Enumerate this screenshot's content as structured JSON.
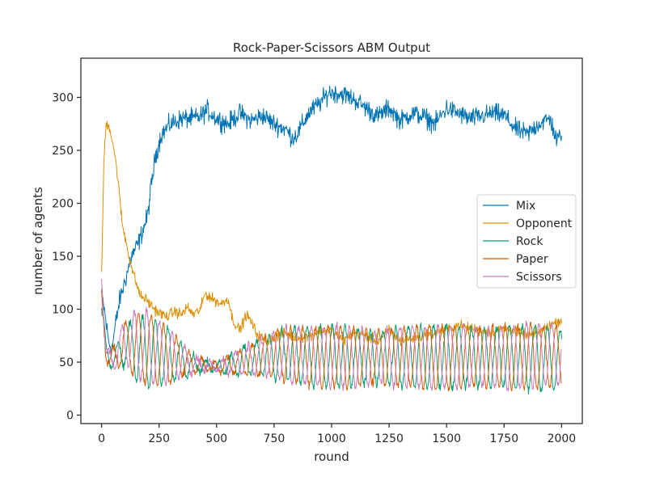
{
  "chart_data": {
    "type": "line",
    "title": "Rock-Paper-Scissors ABM Output",
    "xlabel": "round",
    "ylabel": "number of agents",
    "xlim": [
      -90,
      2090
    ],
    "ylim": [
      -8,
      337
    ],
    "x_ticks": [
      0,
      250,
      500,
      750,
      1000,
      1250,
      1500,
      1750,
      2000
    ],
    "y_ticks": [
      0,
      50,
      100,
      150,
      200,
      250,
      300
    ],
    "grid": false,
    "legend_position": "center-right",
    "series": [
      {
        "name": "Mix",
        "color": "#0173b2",
        "noise": 9,
        "anchors": [
          [
            0,
            115
          ],
          [
            15,
            95
          ],
          [
            30,
            70
          ],
          [
            45,
            62
          ],
          [
            60,
            85
          ],
          [
            80,
            110
          ],
          [
            100,
            125
          ],
          [
            130,
            150
          ],
          [
            160,
            162
          ],
          [
            180,
            175
          ],
          [
            200,
            188
          ],
          [
            215,
            215
          ],
          [
            235,
            245
          ],
          [
            260,
            265
          ],
          [
            300,
            275
          ],
          [
            350,
            280
          ],
          [
            400,
            280
          ],
          [
            430,
            282
          ],
          [
            460,
            288
          ],
          [
            500,
            280
          ],
          [
            550,
            275
          ],
          [
            600,
            285
          ],
          [
            650,
            278
          ],
          [
            700,
            283
          ],
          [
            750,
            275
          ],
          [
            800,
            270
          ],
          [
            830,
            262
          ],
          [
            850,
            265
          ],
          [
            900,
            285
          ],
          [
            950,
            295
          ],
          [
            990,
            305
          ],
          [
            1050,
            303
          ],
          [
            1100,
            298
          ],
          [
            1150,
            290
          ],
          [
            1200,
            282
          ],
          [
            1250,
            290
          ],
          [
            1300,
            278
          ],
          [
            1350,
            285
          ],
          [
            1400,
            282
          ],
          [
            1450,
            275
          ],
          [
            1500,
            290
          ],
          [
            1550,
            285
          ],
          [
            1600,
            280
          ],
          [
            1650,
            282
          ],
          [
            1700,
            285
          ],
          [
            1750,
            283
          ],
          [
            1800,
            270
          ],
          [
            1850,
            265
          ],
          [
            1900,
            275
          ],
          [
            1950,
            280
          ],
          [
            1980,
            258
          ],
          [
            2000,
            268
          ]
        ]
      },
      {
        "name": "Opponent",
        "color": "#de8f05",
        "noise": 5,
        "anchors": [
          [
            0,
            130
          ],
          [
            10,
            240
          ],
          [
            20,
            275
          ],
          [
            35,
            272
          ],
          [
            55,
            250
          ],
          [
            70,
            225
          ],
          [
            90,
            180
          ],
          [
            110,
            160
          ],
          [
            130,
            140
          ],
          [
            150,
            125
          ],
          [
            170,
            112
          ],
          [
            190,
            110
          ],
          [
            210,
            105
          ],
          [
            240,
            98
          ],
          [
            280,
            93
          ],
          [
            320,
            98
          ],
          [
            350,
            95
          ],
          [
            370,
            102
          ],
          [
            400,
            95
          ],
          [
            430,
            100
          ],
          [
            450,
            115
          ],
          [
            480,
            110
          ],
          [
            520,
            105
          ],
          [
            550,
            110
          ],
          [
            570,
            90
          ],
          [
            600,
            80
          ],
          [
            630,
            95
          ],
          [
            650,
            88
          ],
          [
            680,
            75
          ],
          [
            720,
            70
          ],
          [
            760,
            75
          ],
          [
            800,
            78
          ],
          [
            850,
            72
          ],
          [
            900,
            75
          ],
          [
            950,
            80
          ],
          [
            1000,
            80
          ],
          [
            1050,
            70
          ],
          [
            1100,
            78
          ],
          [
            1150,
            75
          ],
          [
            1200,
            70
          ],
          [
            1250,
            80
          ],
          [
            1300,
            70
          ],
          [
            1350,
            72
          ],
          [
            1400,
            75
          ],
          [
            1450,
            78
          ],
          [
            1500,
            80
          ],
          [
            1550,
            85
          ],
          [
            1600,
            82
          ],
          [
            1650,
            80
          ],
          [
            1700,
            78
          ],
          [
            1750,
            82
          ],
          [
            1800,
            80
          ],
          [
            1850,
            75
          ],
          [
            1900,
            78
          ],
          [
            1950,
            85
          ],
          [
            2000,
            90
          ]
        ]
      },
      {
        "name": "Rock",
        "color": "#029e73",
        "noise": 4,
        "phase": 0,
        "anchors": [
          [
            0,
            100
          ],
          [
            20,
            60
          ],
          [
            40,
            55
          ],
          [
            60,
            52
          ],
          [
            100,
            65
          ],
          [
            200,
            60
          ],
          [
            300,
            55
          ],
          [
            400,
            48
          ],
          [
            500,
            45
          ],
          [
            600,
            50
          ],
          [
            700,
            55
          ],
          [
            800,
            58
          ],
          [
            900,
            55
          ],
          [
            1000,
            55
          ],
          [
            1200,
            55
          ],
          [
            1400,
            55
          ],
          [
            1600,
            55
          ],
          [
            1800,
            55
          ],
          [
            2000,
            52
          ]
        ],
        "amp_anchors": [
          [
            0,
            8
          ],
          [
            50,
            10
          ],
          [
            100,
            20
          ],
          [
            150,
            30
          ],
          [
            200,
            35
          ],
          [
            250,
            30
          ],
          [
            300,
            25
          ],
          [
            350,
            15
          ],
          [
            400,
            8
          ],
          [
            450,
            5
          ],
          [
            500,
            4
          ],
          [
            550,
            8
          ],
          [
            600,
            12
          ],
          [
            700,
            18
          ],
          [
            800,
            25
          ],
          [
            900,
            28
          ],
          [
            1000,
            30
          ],
          [
            1100,
            28
          ],
          [
            1200,
            25
          ],
          [
            1300,
            28
          ],
          [
            1400,
            30
          ],
          [
            1500,
            30
          ],
          [
            1600,
            28
          ],
          [
            1700,
            28
          ],
          [
            1800,
            30
          ],
          [
            1900,
            30
          ],
          [
            2000,
            28
          ]
        ]
      },
      {
        "name": "Paper",
        "color": "#d55e00",
        "noise": 4,
        "phase": 2.094,
        "anchors": [
          [
            0,
            110
          ],
          [
            20,
            58
          ],
          [
            40,
            52
          ],
          [
            60,
            55
          ],
          [
            100,
            68
          ],
          [
            200,
            62
          ],
          [
            300,
            55
          ],
          [
            400,
            48
          ],
          [
            500,
            45
          ],
          [
            600,
            50
          ],
          [
            700,
            55
          ],
          [
            800,
            58
          ],
          [
            900,
            55
          ],
          [
            1000,
            55
          ],
          [
            1200,
            55
          ],
          [
            1400,
            55
          ],
          [
            1600,
            55
          ],
          [
            1800,
            55
          ],
          [
            2000,
            55
          ]
        ],
        "amp_anchors": [
          [
            0,
            8
          ],
          [
            50,
            10
          ],
          [
            100,
            20
          ],
          [
            150,
            30
          ],
          [
            200,
            35
          ],
          [
            250,
            30
          ],
          [
            300,
            25
          ],
          [
            350,
            15
          ],
          [
            400,
            8
          ],
          [
            450,
            5
          ],
          [
            500,
            4
          ],
          [
            550,
            8
          ],
          [
            600,
            12
          ],
          [
            700,
            18
          ],
          [
            800,
            25
          ],
          [
            900,
            28
          ],
          [
            1000,
            30
          ],
          [
            1100,
            28
          ],
          [
            1200,
            25
          ],
          [
            1300,
            28
          ],
          [
            1400,
            30
          ],
          [
            1500,
            30
          ],
          [
            1600,
            28
          ],
          [
            1700,
            28
          ],
          [
            1800,
            30
          ],
          [
            1900,
            30
          ],
          [
            2000,
            28
          ]
        ]
      },
      {
        "name": "Scissors",
        "color": "#cc78bc",
        "noise": 4,
        "phase": 4.189,
        "anchors": [
          [
            0,
            135
          ],
          [
            20,
            55
          ],
          [
            40,
            50
          ],
          [
            60,
            58
          ],
          [
            100,
            70
          ],
          [
            200,
            64
          ],
          [
            300,
            55
          ],
          [
            400,
            48
          ],
          [
            500,
            45
          ],
          [
            600,
            50
          ],
          [
            700,
            55
          ],
          [
            800,
            58
          ],
          [
            900,
            55
          ],
          [
            1000,
            55
          ],
          [
            1200,
            55
          ],
          [
            1400,
            55
          ],
          [
            1600,
            55
          ],
          [
            1800,
            55
          ],
          [
            2000,
            58
          ]
        ],
        "amp_anchors": [
          [
            0,
            8
          ],
          [
            50,
            10
          ],
          [
            100,
            20
          ],
          [
            150,
            30
          ],
          [
            200,
            35
          ],
          [
            250,
            30
          ],
          [
            300,
            25
          ],
          [
            350,
            15
          ],
          [
            400,
            8
          ],
          [
            450,
            5
          ],
          [
            500,
            4
          ],
          [
            550,
            8
          ],
          [
            600,
            12
          ],
          [
            700,
            18
          ],
          [
            800,
            25
          ],
          [
            900,
            28
          ],
          [
            1000,
            30
          ],
          [
            1100,
            28
          ],
          [
            1200,
            25
          ],
          [
            1300,
            28
          ],
          [
            1400,
            30
          ],
          [
            1500,
            30
          ],
          [
            1600,
            28
          ],
          [
            1700,
            28
          ],
          [
            1800,
            30
          ],
          [
            1900,
            30
          ],
          [
            2000,
            28
          ]
        ]
      }
    ]
  }
}
